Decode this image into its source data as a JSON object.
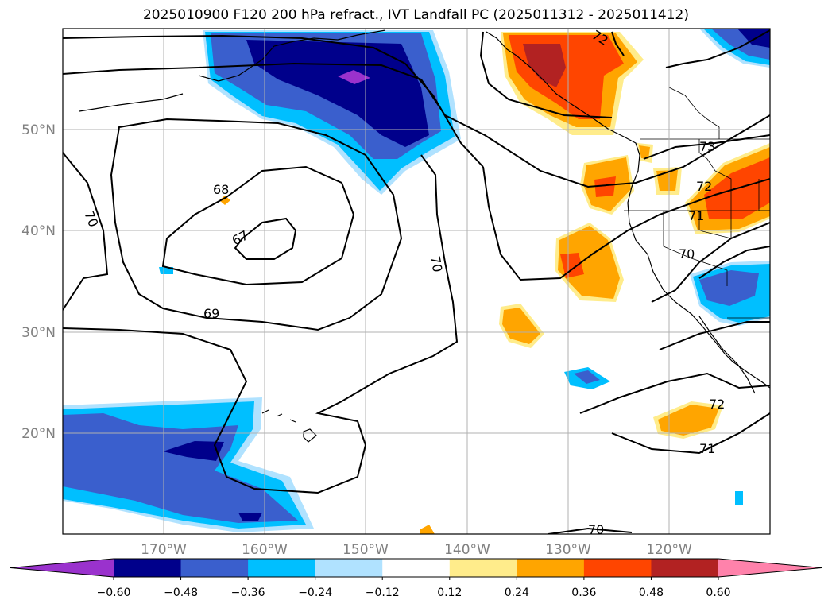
{
  "title": "2025010900 F120 200 hPa refract., IVT Landfall PC (2025011312 - 2025011412)",
  "lat_labels": [
    "50°N",
    "40°N",
    "30°N",
    "20°N"
  ],
  "lon_labels": [
    "170°W",
    "160°W",
    "150°W",
    "140°W",
    "130°W",
    "120°W"
  ],
  "contour_labels": [
    "68",
    "67",
    "69",
    "70",
    "70",
    "73",
    "72",
    "71",
    "70",
    "72",
    "71",
    "70",
    "72"
  ],
  "colorbar": {
    "ticks": [
      "−0.60",
      "−0.48",
      "−0.36",
      "−0.24",
      "−0.12",
      "0.12",
      "0.24",
      "0.36",
      "0.48",
      "0.60"
    ],
    "colors": [
      "#9a32cd",
      "#00008b",
      "#3a5fcd",
      "#00bfff",
      "#b0e2ff",
      "#ffffff",
      "#ffec8b",
      "#ffa500",
      "#ff4500",
      "#b22222",
      "#ff82ab"
    ]
  },
  "colors": {
    "purple": "#9a32cd",
    "navy": "#00008b",
    "royal": "#3a5fcd",
    "sky": "#00bfff",
    "light_blue": "#b0e2ff",
    "pale_yellow": "#ffec8b",
    "orange": "#ffa500",
    "red_orange": "#ff4500",
    "firebrick": "#b22222",
    "pink": "#ff82ab",
    "grid": "#b0b0b0"
  }
}
